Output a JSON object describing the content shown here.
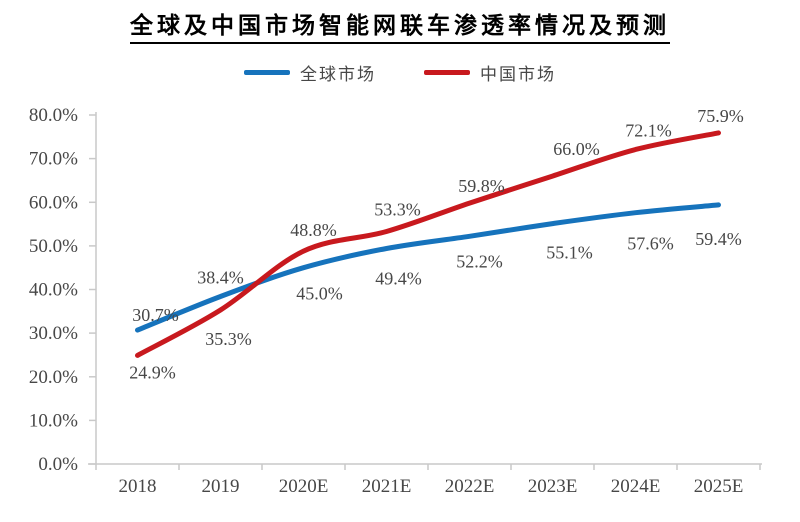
{
  "title": "全球及中国市场智能网联车渗透率情况及预测",
  "chart_data": {
    "type": "line",
    "title": "全球及中国市场智能网联车渗透率情况及预测",
    "categories": [
      "2018",
      "2019",
      "2020E",
      "2021E",
      "2022E",
      "2023E",
      "2024E",
      "2025E"
    ],
    "series": [
      {
        "name": "全球市场",
        "color": "#1673BC",
        "values": [
          30.7,
          38.4,
          45.0,
          49.4,
          52.2,
          55.1,
          57.6,
          59.4
        ],
        "label_dx": [
          18,
          0,
          16,
          12,
          10,
          17,
          15,
          0
        ],
        "label_dy": [
          -9,
          -13,
          32,
          36,
          31,
          35,
          37,
          40
        ]
      },
      {
        "name": "中国市场",
        "color": "#C8191E",
        "values": [
          24.9,
          35.3,
          48.8,
          53.3,
          59.8,
          66.0,
          72.1,
          75.9
        ],
        "label_dx": [
          15,
          8,
          10,
          11,
          12,
          24,
          13,
          2
        ],
        "label_dy": [
          23,
          35,
          -15,
          -16,
          -11,
          -21,
          -13,
          -11
        ]
      }
    ],
    "xlabel": "",
    "ylabel": "",
    "ylim": [
      0,
      80
    ],
    "ytick_step": 10,
    "ytick_suffix": "%",
    "grid": false,
    "legend_position": "top",
    "axis_color": "#C9C9C9",
    "tick_label_color": "#474747",
    "data_label_color": "#474747"
  }
}
